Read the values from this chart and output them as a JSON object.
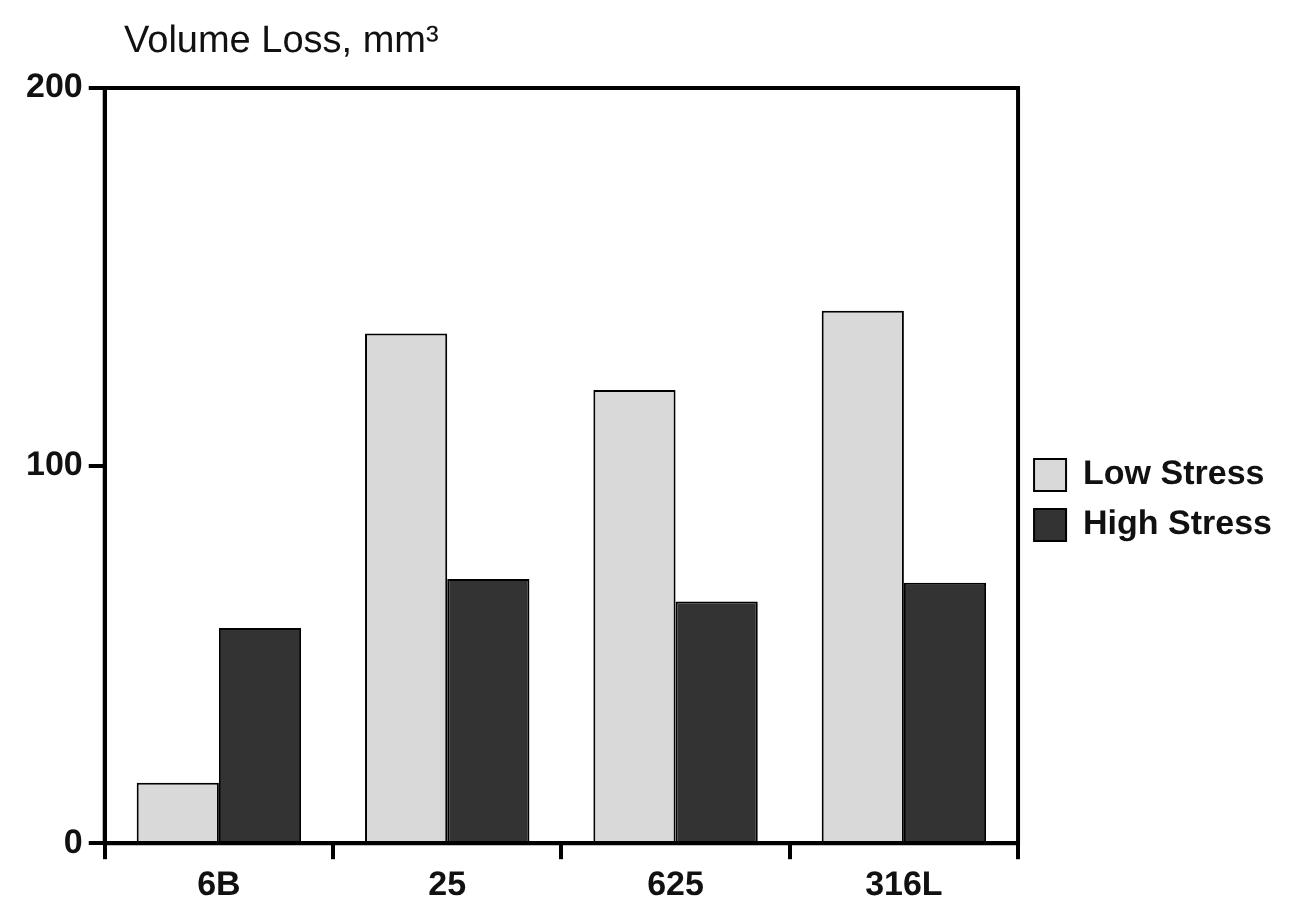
{
  "chart_data": {
    "type": "bar",
    "ylabel": "Volume Loss, mm³",
    "categories": [
      "6B",
      "25",
      "625",
      "316L"
    ],
    "series": [
      {
        "name": "Low Stress",
        "color": "#d9d9d9",
        "values": [
          16,
          135,
          120,
          141
        ]
      },
      {
        "name": "High Stress",
        "color": "#333333",
        "values": [
          57,
          70,
          64,
          69
        ]
      }
    ],
    "ylim": [
      0,
      200
    ],
    "yticks": [
      0,
      100,
      200
    ],
    "grid": false,
    "legend": "right"
  }
}
